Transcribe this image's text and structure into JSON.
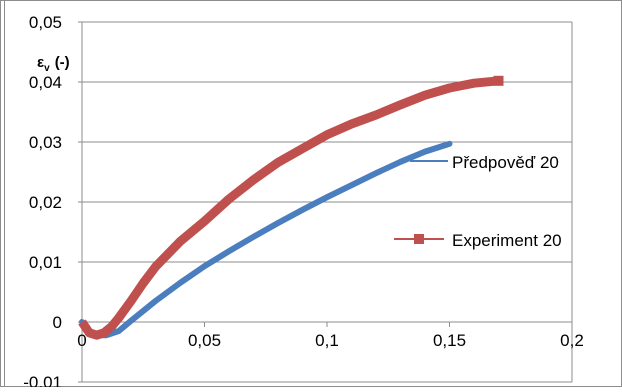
{
  "chart_data": {
    "type": "line",
    "title": "",
    "xlabel": "",
    "ylabel": "εv (-)",
    "ylabel_main": "ε",
    "ylabel_sub": "v",
    "ylabel_unit": "(-)",
    "xlim": [
      0,
      0.2
    ],
    "ylim": [
      -0.01,
      0.05
    ],
    "x_ticks": [
      0,
      0.05,
      0.1,
      0.15,
      0.2
    ],
    "x_tick_labels": [
      "0",
      "0,05",
      "0,1",
      "0,15",
      "0,2"
    ],
    "y_ticks": [
      -0.01,
      0,
      0.01,
      0.02,
      0.03,
      0.04,
      0.05
    ],
    "y_tick_labels": [
      "-0,01",
      "0",
      "0,01",
      "0,02",
      "0,03",
      "0,04",
      "0,05"
    ],
    "grid": "horizontal",
    "legend_position": "right",
    "series": [
      {
        "name": "Předpověď 20",
        "color": "#4a7ebf",
        "marker": "none",
        "x": [
          0,
          0.003,
          0.006,
          0.01,
          0.015,
          0.02,
          0.03,
          0.04,
          0.05,
          0.06,
          0.07,
          0.08,
          0.09,
          0.1,
          0.11,
          0.12,
          0.13,
          0.14,
          0.15
        ],
        "y": [
          0,
          -0.0015,
          -0.0022,
          -0.0022,
          -0.0015,
          0.0002,
          0.0035,
          0.0065,
          0.0093,
          0.0118,
          0.0142,
          0.0165,
          0.0187,
          0.0208,
          0.0228,
          0.0248,
          0.0267,
          0.0284,
          0.0297
        ]
      },
      {
        "name": "Experiment 20",
        "color": "#c0504d",
        "marker": "square",
        "x": [
          0,
          0.003,
          0.006,
          0.009,
          0.012,
          0.015,
          0.02,
          0.025,
          0.03,
          0.04,
          0.05,
          0.06,
          0.07,
          0.08,
          0.09,
          0.1,
          0.11,
          0.12,
          0.13,
          0.14,
          0.15,
          0.16,
          0.17
        ],
        "y": [
          0,
          -0.0018,
          -0.0022,
          -0.0018,
          -0.0008,
          0.0007,
          0.0035,
          0.0065,
          0.0092,
          0.0134,
          0.0168,
          0.0205,
          0.0237,
          0.0266,
          0.0289,
          0.0312,
          0.033,
          0.0345,
          0.0362,
          0.0378,
          0.039,
          0.0398,
          0.0402
        ]
      }
    ]
  }
}
